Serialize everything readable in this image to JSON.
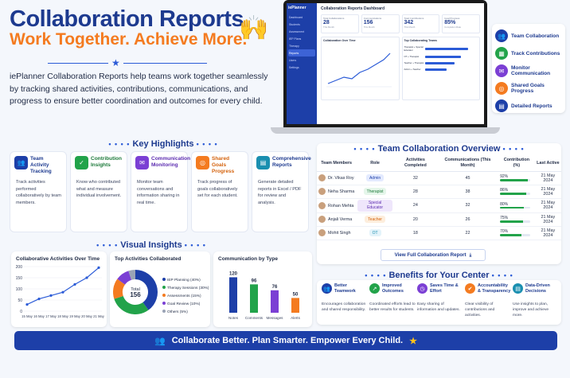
{
  "hero": {
    "title": "Collaboration Reports",
    "subtitle": "Work Together. Achieve More.",
    "description": "iePlanner Collaboration Reports help teams work together seamlessly by tracking shared activities, contributions, communications, and progress to ensure better coordination and outcomes for every child."
  },
  "laptop": {
    "logo": "iePlanner",
    "nav": [
      "Dashboard",
      "Students",
      "Assessment",
      "IEP Plans",
      "Therapy",
      "Reports",
      "Users",
      "Settings"
    ],
    "active_index": 5,
    "title": "Collaboration Reports Dashboard",
    "cards": [
      {
        "label": "Total Collaborations",
        "value": "28",
        "sub": "This Month"
      },
      {
        "label": "Communications",
        "value": "156",
        "sub": "This Month"
      },
      {
        "label": "Total Contributions",
        "value": "342",
        "sub": "This Month"
      },
      {
        "label": "Goal Progress",
        "value": "85%",
        "sub": "Completion Rate"
      }
    ],
    "box1_title": "Collaboration Over Time",
    "box2_title": "Top Collaborating Teams",
    "teams": [
      {
        "name": "Therapist + Special Educator",
        "value": 0.9
      },
      {
        "name": "OT + Therapist",
        "value": 0.75
      },
      {
        "name": "Teacher + Therapist",
        "value": 0.62
      },
      {
        "name": "Admin + Teacher",
        "value": 0.45
      }
    ]
  },
  "right_nav": [
    {
      "label": "Team Collaboration",
      "icon": "team-icon",
      "color": "#1d3fa8"
    },
    {
      "label": "Track Contributions",
      "icon": "chart-icon",
      "color": "#22a34a"
    },
    {
      "label": "Monitor Communication",
      "icon": "chat-icon",
      "color": "#7b3fd4"
    },
    {
      "label": "Shared Goals Progress",
      "icon": "target-icon",
      "color": "#f47b20"
    },
    {
      "label": "Detailed Reports",
      "icon": "report-icon",
      "color": "#1d3fa8"
    }
  ],
  "highlights": {
    "title": "Key Highlights",
    "items": [
      {
        "name": "Team Activity Tracking",
        "desc": "Track activities performed collaboratively by team members.",
        "color": "#1d3fa8",
        "text_color": "#1d3a8f",
        "icon": "team-icon"
      },
      {
        "name": "Contribution Insights",
        "desc": "Know who contributed what and measure individual involvement.",
        "color": "#22a34a",
        "text_color": "#1d7a3a",
        "icon": "clipboard-icon"
      },
      {
        "name": "Communication Monitoring",
        "desc": "Monitor team conversations and information sharing in real time.",
        "color": "#7b3fd4",
        "text_color": "#5b2bb0",
        "icon": "chat-icon"
      },
      {
        "name": "Shared Goals Progress",
        "desc": "Track progress of goals collaboratively set for each student.",
        "color": "#f47b20",
        "text_color": "#d4620c",
        "icon": "target-icon"
      },
      {
        "name": "Comprehensive Reports",
        "desc": "Generate detailed reports in Excel / PDF for review and analysis.",
        "color": "#1a8fb0",
        "text_color": "#1d3a8f",
        "icon": "report-icon"
      }
    ]
  },
  "overview": {
    "title": "Team Collaboration Overview",
    "headers": [
      "Team Members",
      "Role",
      "Activities Completed",
      "Communications (This Month)",
      "Contribution (%)",
      "Last Active"
    ],
    "rows": [
      {
        "name": "Dr. Vikas Roy",
        "role": "Admin",
        "role_bg": "#e3eaff",
        "role_fg": "#1d3fa8",
        "activities": "32",
        "comms": "45",
        "contribution": 92,
        "contribution_label": "92%",
        "last": "21 May 2024"
      },
      {
        "name": "Neha Sharma",
        "role": "Therapist",
        "role_bg": "#e5f6ea",
        "role_fg": "#1d7a3a",
        "activities": "28",
        "comms": "38",
        "contribution": 86,
        "contribution_label": "86%",
        "last": "21 May 2024"
      },
      {
        "name": "Rohan Mehta",
        "role": "Special Educator",
        "role_bg": "#efe6fb",
        "role_fg": "#5b2bb0",
        "activities": "24",
        "comms": "32",
        "contribution": 80,
        "contribution_label": "80%",
        "last": "21 May 2024"
      },
      {
        "name": "Anjali Verma",
        "role": "Teacher",
        "role_bg": "#fdeedd",
        "role_fg": "#d4620c",
        "activities": "20",
        "comms": "26",
        "contribution": 75,
        "contribution_label": "75%",
        "last": "21 May 2024"
      },
      {
        "name": "Mohit Singh",
        "role": "OT",
        "role_bg": "#e3f3fa",
        "role_fg": "#1a8fb0",
        "activities": "18",
        "comms": "22",
        "contribution": 70,
        "contribution_label": "70%",
        "last": "21 May 2024"
      }
    ],
    "button_label": "View Full Collaboration Report"
  },
  "visual_insights_title": "Visual Insights",
  "chart_data": [
    {
      "type": "line",
      "title": "Collaborative Activities Over Time",
      "x": [
        "15 May",
        "16 May",
        "17 May",
        "18 May",
        "19 May",
        "20 May",
        "21 May"
      ],
      "values": [
        30,
        55,
        70,
        85,
        120,
        150,
        195
      ],
      "yticks": [
        "200",
        "150",
        "100",
        "50",
        "0"
      ],
      "ylim": [
        0,
        200
      ]
    },
    {
      "type": "pie",
      "title": "Top Activities Collaborated",
      "center_label": "Total",
      "center_value": "156",
      "slices": [
        {
          "label": "IEP Planning (40%)",
          "value": 40,
          "color": "#1d3fa8"
        },
        {
          "label": "Therapy Sessions (30%)",
          "value": 30,
          "color": "#22a34a"
        },
        {
          "label": "Assessments (15%)",
          "value": 15,
          "color": "#f47b20"
        },
        {
          "label": "Goal Review (10%)",
          "value": 10,
          "color": "#7b3fd4"
        },
        {
          "label": "Others (5%)",
          "value": 5,
          "color": "#9aa3b5"
        }
      ]
    },
    {
      "type": "bar",
      "title": "Communication by Type",
      "categories": [
        "Notes",
        "Comments",
        "Messages",
        "Alerts"
      ],
      "values": [
        120,
        96,
        76,
        50
      ],
      "colors": [
        "#1d3fa8",
        "#22a34a",
        "#7b3fd4",
        "#f47b20"
      ],
      "ylim": [
        0,
        140
      ]
    }
  ],
  "benefits": {
    "title": "Benefits for Your Center",
    "items": [
      {
        "name": "Better Teamwork",
        "desc": "Encourages collaboration and shared responsibility.",
        "color": "#1d3fa8",
        "icon": "team-icon"
      },
      {
        "name": "Improved Outcomes",
        "desc": "Coordinated efforts lead to better results for students.",
        "color": "#22a34a",
        "icon": "growth-icon"
      },
      {
        "name": "Saves Time & Effort",
        "desc": "Easy sharing of information and updates.",
        "color": "#7b3fd4",
        "icon": "clock-icon"
      },
      {
        "name": "Accountability & Transparency",
        "desc": "Clear visibility of contributions and activities.",
        "color": "#f47b20",
        "icon": "shield-icon"
      },
      {
        "name": "Data-Driven Decisions",
        "desc": "Use insights to plan, improve and achieve more.",
        "color": "#1a8fb0",
        "icon": "report-icon"
      }
    ]
  },
  "footer": "Collaborate Better. Plan Smarter. Empower Every Child."
}
